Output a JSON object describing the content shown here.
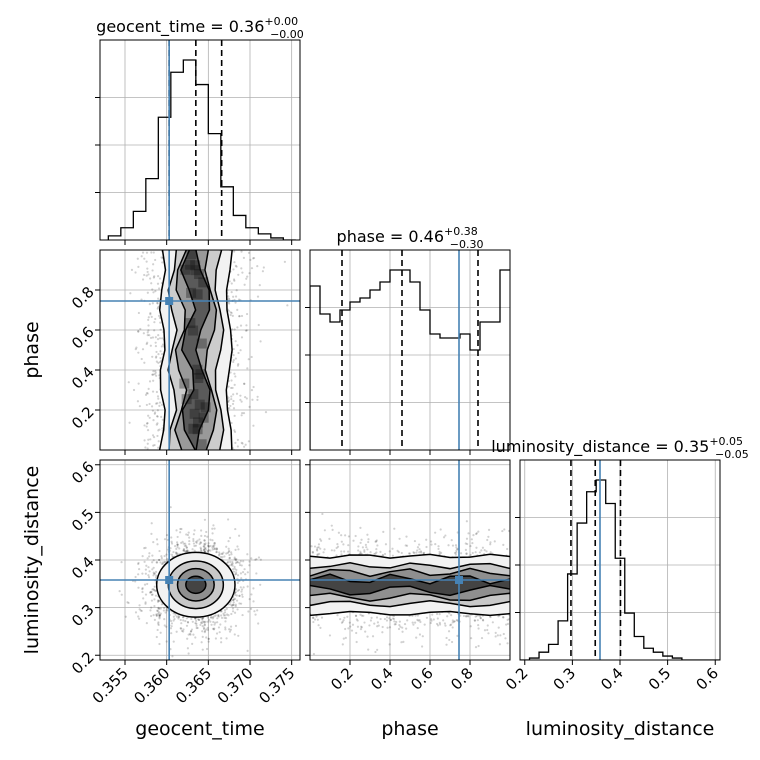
{
  "chart_data": {
    "type": "corner",
    "truth_color": "#4682b4",
    "grid": true,
    "parameters": [
      {
        "name": "geocent_time",
        "range": [
          0.352,
          0.376
        ],
        "ticks": [
          0.355,
          0.36,
          0.365,
          0.37,
          0.375
        ],
        "tick_labels": [
          "0.355",
          "0.360",
          "0.365",
          "0.370",
          "0.375"
        ],
        "title": {
          "prefix": "geocent_time = 0.36",
          "sup": "+0.00",
          "sub": "−0.00"
        },
        "quantiles": [
          0.3603,
          0.3635,
          0.3666
        ],
        "truth": 0.3603,
        "histogram": {
          "bins": [
            0.353,
            0.3545,
            0.356,
            0.3575,
            0.359,
            0.3605,
            0.362,
            0.3635,
            0.365,
            0.3665,
            0.368,
            0.3695,
            0.371,
            0.3725,
            0.374,
            0.3755
          ],
          "counts": [
            2,
            6,
            14,
            30,
            60,
            82,
            88,
            76,
            52,
            26,
            12,
            6,
            3,
            1,
            0
          ]
        }
      },
      {
        "name": "phase",
        "range": [
          0.0,
          1.0
        ],
        "ticks": [
          0.2,
          0.4,
          0.6,
          0.8
        ],
        "tick_labels": [
          "0.2",
          "0.4",
          "0.6",
          "0.8"
        ],
        "title": {
          "prefix": "phase = 0.46",
          "sup": "+0.38",
          "sub": "−0.30"
        },
        "quantiles": [
          0.16,
          0.46,
          0.84
        ],
        "truth": 0.745,
        "histogram": {
          "bins": [
            0.0,
            0.05,
            0.1,
            0.15,
            0.2,
            0.25,
            0.3,
            0.35,
            0.4,
            0.45,
            0.5,
            0.55,
            0.6,
            0.65,
            0.7,
            0.75,
            0.8,
            0.85,
            0.9,
            0.95,
            1.0
          ],
          "counts": [
            82,
            68,
            64,
            70,
            74,
            76,
            80,
            84,
            90,
            90,
            84,
            70,
            58,
            56,
            56,
            58,
            50,
            64,
            64,
            90
          ]
        }
      },
      {
        "name": "luminosity_distance",
        "range": [
          0.19,
          0.61
        ],
        "ticks": [
          0.2,
          0.3,
          0.4,
          0.5,
          0.6
        ],
        "tick_labels": [
          "0.2",
          "0.3",
          "0.4",
          "0.5",
          "0.6"
        ],
        "title": {
          "prefix": "luminosity_distance = 0.35",
          "sup": "+0.05",
          "sub": "−0.05"
        },
        "quantiles": [
          0.297,
          0.348,
          0.401
        ],
        "truth": 0.358,
        "histogram": {
          "bins": [
            0.19,
            0.21,
            0.23,
            0.25,
            0.27,
            0.29,
            0.31,
            0.33,
            0.35,
            0.37,
            0.39,
            0.41,
            0.43,
            0.45,
            0.47,
            0.49,
            0.51,
            0.53,
            0.55,
            0.57,
            0.59,
            0.61
          ],
          "counts": [
            0,
            1,
            4,
            8,
            20,
            44,
            70,
            86,
            92,
            80,
            52,
            24,
            12,
            6,
            4,
            2,
            1,
            0,
            0,
            0,
            0
          ]
        }
      }
    ],
    "contour_panels": [
      {
        "x": "geocent_time",
        "y": "phase",
        "x_center": 0.3635,
        "x_halfwidths": [
          0.0009,
          0.0018,
          0.0028,
          0.004
        ]
      },
      {
        "x": "geocent_time",
        "y": "luminosity_distance",
        "center": [
          0.3635,
          0.348
        ],
        "radii": [
          [
            0.0012,
            0.018
          ],
          [
            0.0022,
            0.034
          ],
          [
            0.0033,
            0.05
          ],
          [
            0.0047,
            0.068
          ]
        ]
      },
      {
        "x": "phase",
        "y": "luminosity_distance",
        "y_center": 0.348,
        "y_halfwidths": [
          0.012,
          0.026,
          0.04,
          0.06
        ]
      }
    ]
  }
}
